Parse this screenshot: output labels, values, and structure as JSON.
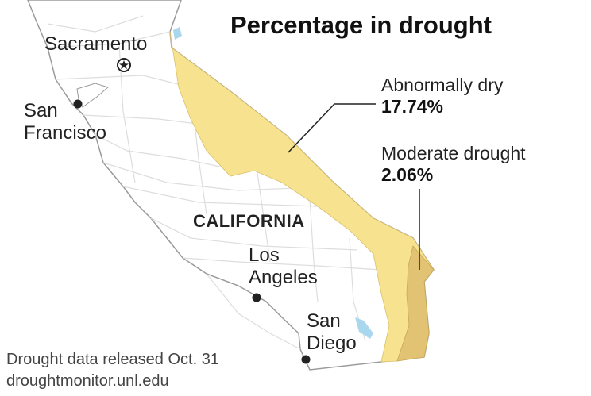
{
  "title": "Percentage in drought",
  "state_label": "CALIFORNIA",
  "cities": [
    {
      "name_lines": [
        "Sacramento"
      ],
      "marker": "star",
      "capital": true
    },
    {
      "name_lines": [
        "San",
        "Francisco"
      ],
      "marker": "dot"
    },
    {
      "name_lines": [
        "Los",
        "Angeles"
      ],
      "marker": "dot"
    },
    {
      "name_lines": [
        "San",
        "Diego"
      ],
      "marker": "dot"
    }
  ],
  "legend": [
    {
      "category": "Abnormally dry",
      "percent": "17.74%",
      "color": "#f7e28f"
    },
    {
      "category": "Moderate drought",
      "percent": "2.06%",
      "color": "#e2c373"
    }
  ],
  "colors": {
    "land": "#ffffff",
    "county_lines": "#dddddd",
    "coastline": "#9a9a9a",
    "water": "#a9d7ee",
    "marker": "#222222"
  },
  "source": {
    "line1": "Drought data released Oct. 31",
    "line2": "droughtmonitor.unl.edu"
  }
}
